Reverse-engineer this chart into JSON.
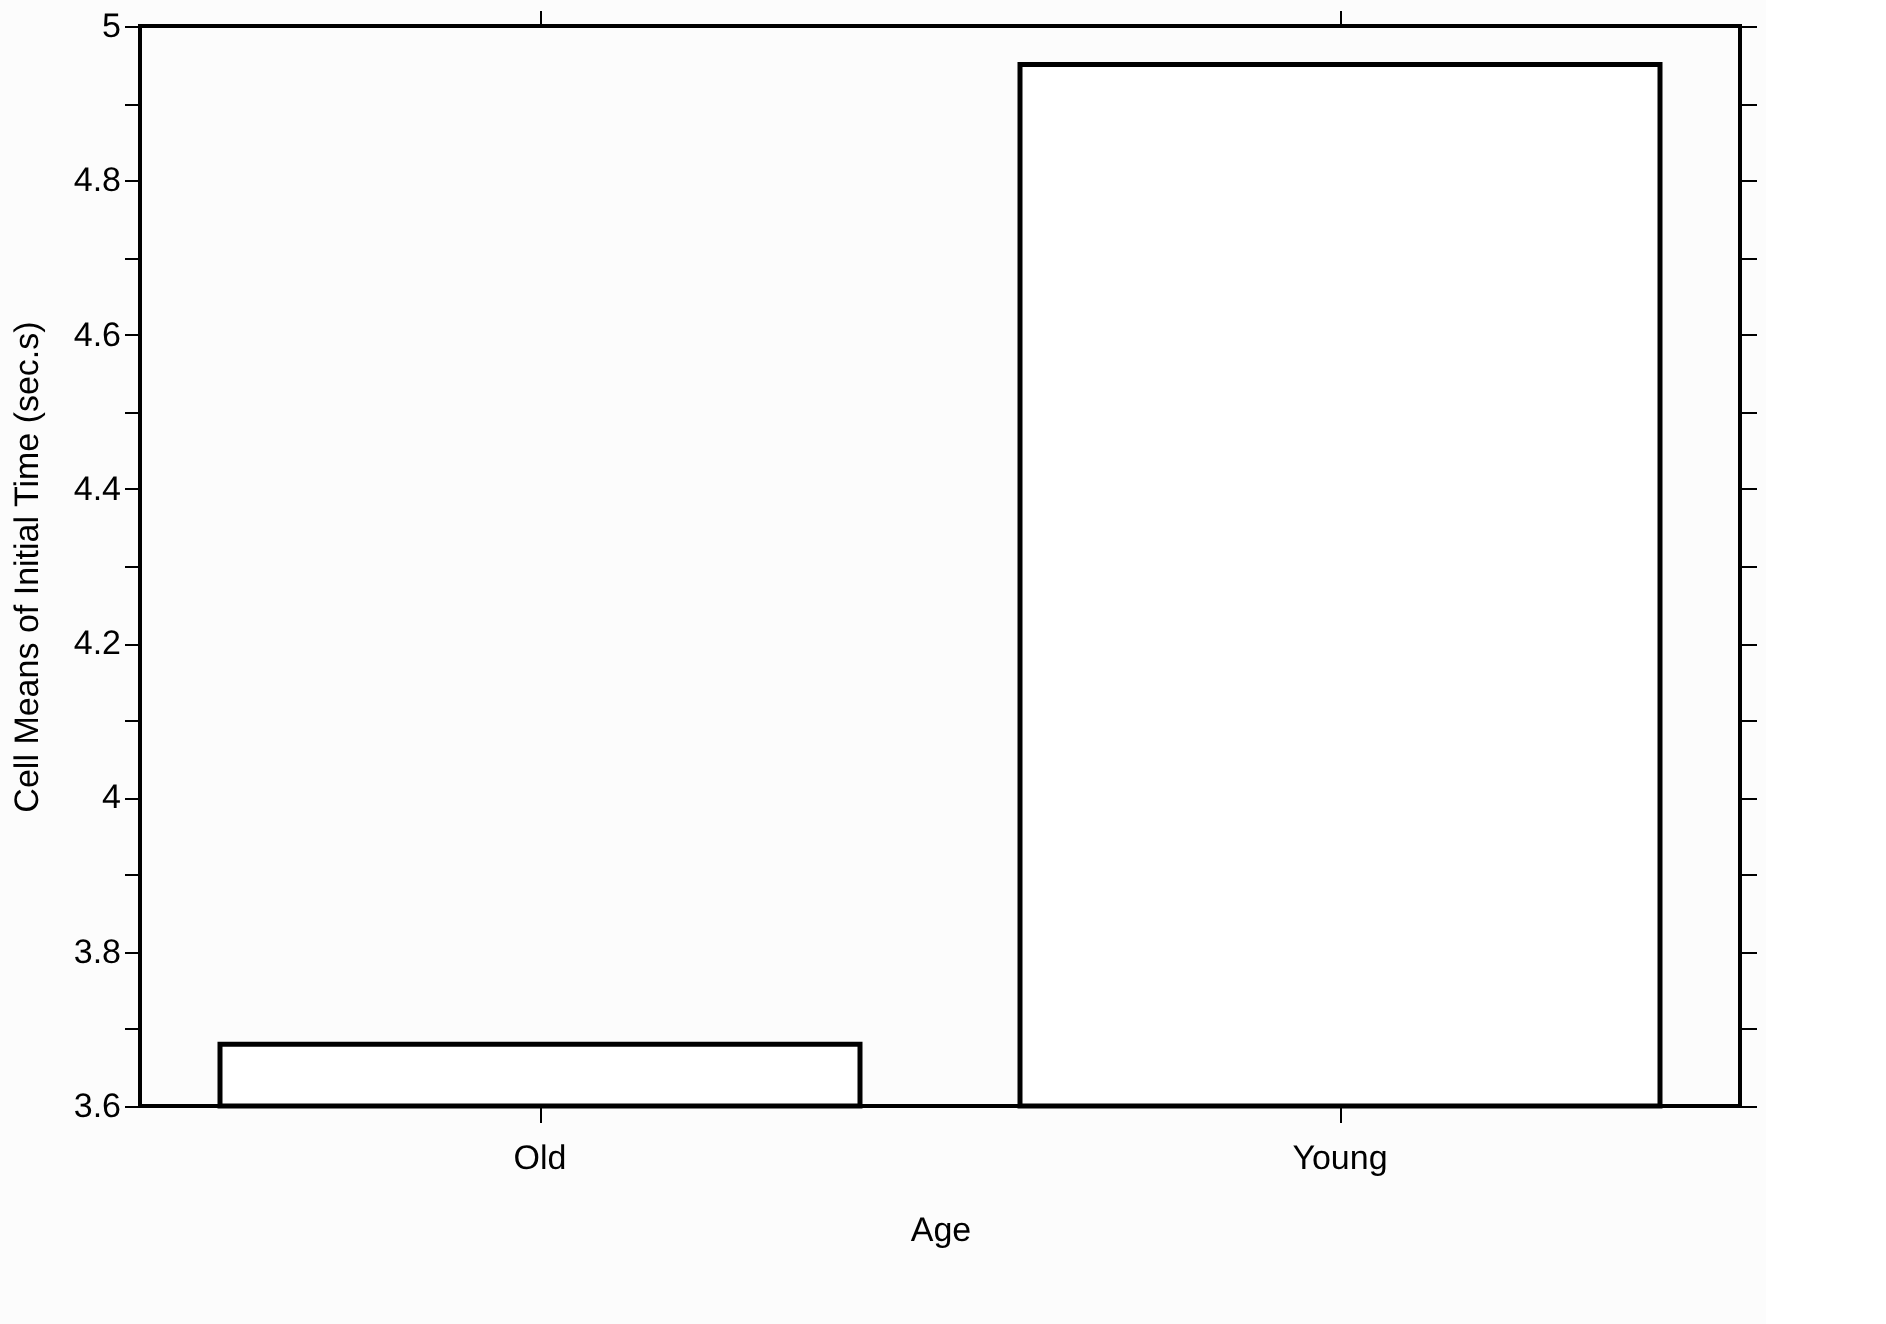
{
  "chart_data": {
    "type": "bar",
    "xlabel": "Age",
    "ylabel": "Cell Means of Initial Time (sec.s)",
    "categories": [
      "Old",
      "Young"
    ],
    "values": [
      3.68,
      4.95
    ],
    "color": "#ffffff",
    "ylim": [
      3.6,
      5
    ],
    "yticks": [
      3.6,
      {
        "value": 3.7,
        "label": null
      },
      3.8,
      {
        "value": 3.9,
        "label": null
      },
      4,
      {
        "value": 4.1,
        "label": null
      },
      4.2,
      {
        "value": 4.3,
        "label": null
      },
      4.4,
      {
        "value": 4.5,
        "label": null
      },
      4.6,
      {
        "value": 4.7,
        "label": null
      },
      4.8,
      {
        "value": 4.9,
        "label": null
      },
      5
    ],
    "grid": false
  }
}
